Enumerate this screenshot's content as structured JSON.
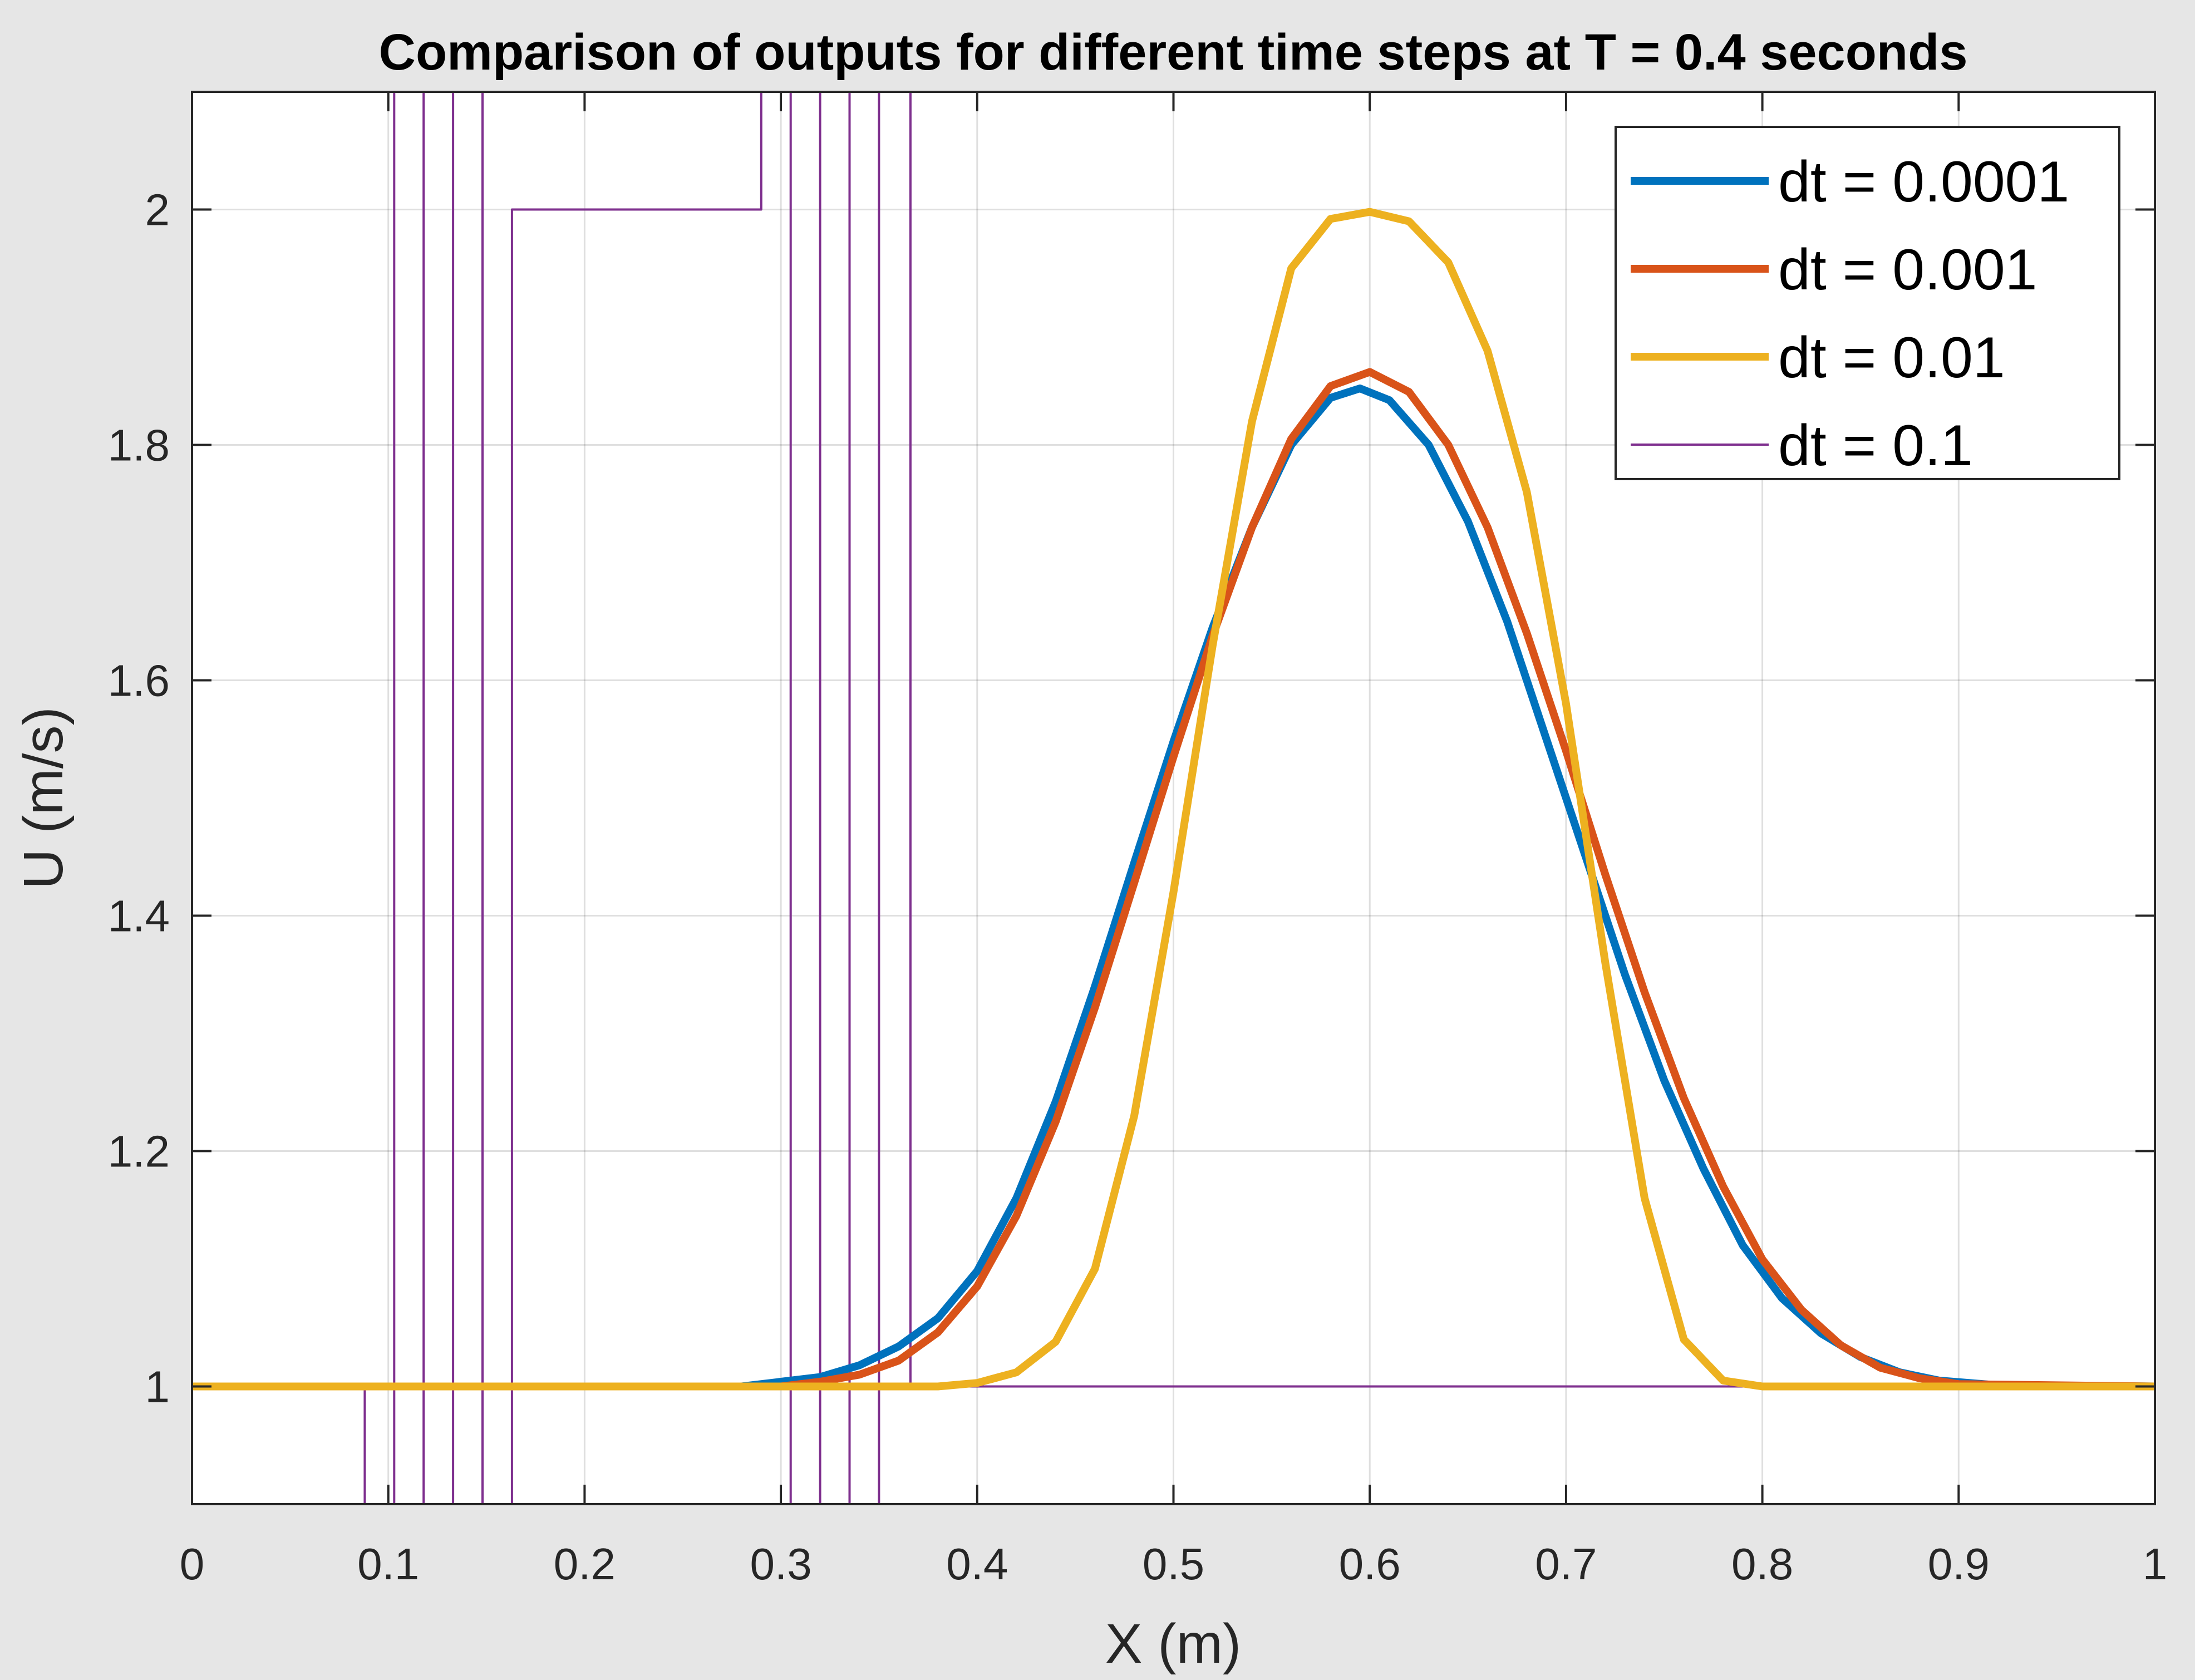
{
  "chart_data": {
    "type": "line",
    "title": "Comparison of outputs for different time steps at T = 0.4 seconds",
    "xlabel": "X (m)",
    "ylabel": "U (m/s)",
    "xlim": [
      0,
      1
    ],
    "ylim": [
      0.9,
      2.1
    ],
    "xticks": [
      0,
      0.1,
      0.2,
      0.3,
      0.4,
      0.5,
      0.6,
      0.7,
      0.8,
      0.9,
      1
    ],
    "xtick_labels": [
      "0",
      "0.1",
      "0.2",
      "0.3",
      "0.4",
      "0.5",
      "0.6",
      "0.7",
      "0.8",
      "0.9",
      "1"
    ],
    "yticks": [
      1,
      1.2,
      1.4,
      1.6,
      1.8,
      2
    ],
    "ytick_labels": [
      "1",
      "1.2",
      "1.4",
      "1.6",
      "1.8",
      "2"
    ],
    "grid": true,
    "legend_position": "top-right",
    "series": [
      {
        "name": "dt = 0.0001",
        "color": "#0072BD",
        "x": [
          0,
          0.28,
          0.3,
          0.32,
          0.34,
          0.36,
          0.38,
          0.4,
          0.42,
          0.44,
          0.46,
          0.48,
          0.5,
          0.52,
          0.54,
          0.56,
          0.58,
          0.595,
          0.61,
          0.63,
          0.65,
          0.67,
          0.69,
          0.71,
          0.73,
          0.75,
          0.77,
          0.79,
          0.81,
          0.83,
          0.85,
          0.87,
          0.89,
          0.92,
          1
        ],
        "y": [
          1,
          1,
          1.004,
          1.008,
          1.018,
          1.034,
          1.058,
          1.098,
          1.16,
          1.242,
          1.34,
          1.445,
          1.548,
          1.645,
          1.73,
          1.8,
          1.84,
          1.848,
          1.838,
          1.8,
          1.735,
          1.65,
          1.55,
          1.45,
          1.35,
          1.26,
          1.185,
          1.12,
          1.075,
          1.045,
          1.025,
          1.012,
          1.005,
          1.001,
          1
        ]
      },
      {
        "name": "dt = 0.001",
        "color": "#D95319",
        "x": [
          0,
          0.3,
          0.32,
          0.34,
          0.36,
          0.38,
          0.4,
          0.42,
          0.44,
          0.46,
          0.48,
          0.5,
          0.52,
          0.54,
          0.56,
          0.58,
          0.6,
          0.62,
          0.64,
          0.66,
          0.68,
          0.7,
          0.72,
          0.74,
          0.76,
          0.78,
          0.8,
          0.82,
          0.84,
          0.86,
          0.88,
          0.9,
          1
        ],
        "y": [
          1,
          1,
          1.004,
          1.01,
          1.022,
          1.046,
          1.085,
          1.145,
          1.225,
          1.322,
          1.428,
          1.535,
          1.638,
          1.73,
          1.805,
          1.85,
          1.862,
          1.845,
          1.8,
          1.73,
          1.64,
          1.54,
          1.435,
          1.335,
          1.245,
          1.17,
          1.108,
          1.065,
          1.035,
          1.016,
          1.007,
          1.002,
          1
        ]
      },
      {
        "name": "dt = 0.01",
        "color": "#EDB120",
        "x": [
          0,
          0.38,
          0.4,
          0.42,
          0.44,
          0.46,
          0.48,
          0.5,
          0.52,
          0.54,
          0.56,
          0.58,
          0.6,
          0.62,
          0.64,
          0.66,
          0.68,
          0.7,
          0.72,
          0.74,
          0.76,
          0.78,
          0.8,
          1
        ],
        "y": [
          1,
          1,
          1.003,
          1.012,
          1.038,
          1.1,
          1.23,
          1.42,
          1.63,
          1.82,
          1.95,
          1.992,
          1.998,
          1.99,
          1.955,
          1.88,
          1.76,
          1.58,
          1.36,
          1.16,
          1.04,
          1.005,
          1,
          1
        ]
      },
      {
        "name": "dt = 0.1",
        "color": "#7E2F8E",
        "x": [
          0,
          0.088,
          0.088,
          0.103,
          0.103,
          0.118,
          0.118,
          0.133,
          0.133,
          0.148,
          0.148,
          0.163,
          0.163,
          0.29,
          0.29,
          0.305,
          0.305,
          0.32,
          0.32,
          0.335,
          0.335,
          0.35,
          0.35,
          0.366,
          0.366,
          1
        ],
        "y": [
          1,
          1,
          0.9,
          0.9,
          2.1,
          2.1,
          0.9,
          0.9,
          2.1,
          2.1,
          0.9,
          0.9,
          2,
          2,
          2.1,
          2.1,
          0.9,
          0.9,
          2.1,
          2.1,
          0.9,
          0.9,
          2.1,
          2.1,
          1,
          1
        ]
      }
    ]
  }
}
